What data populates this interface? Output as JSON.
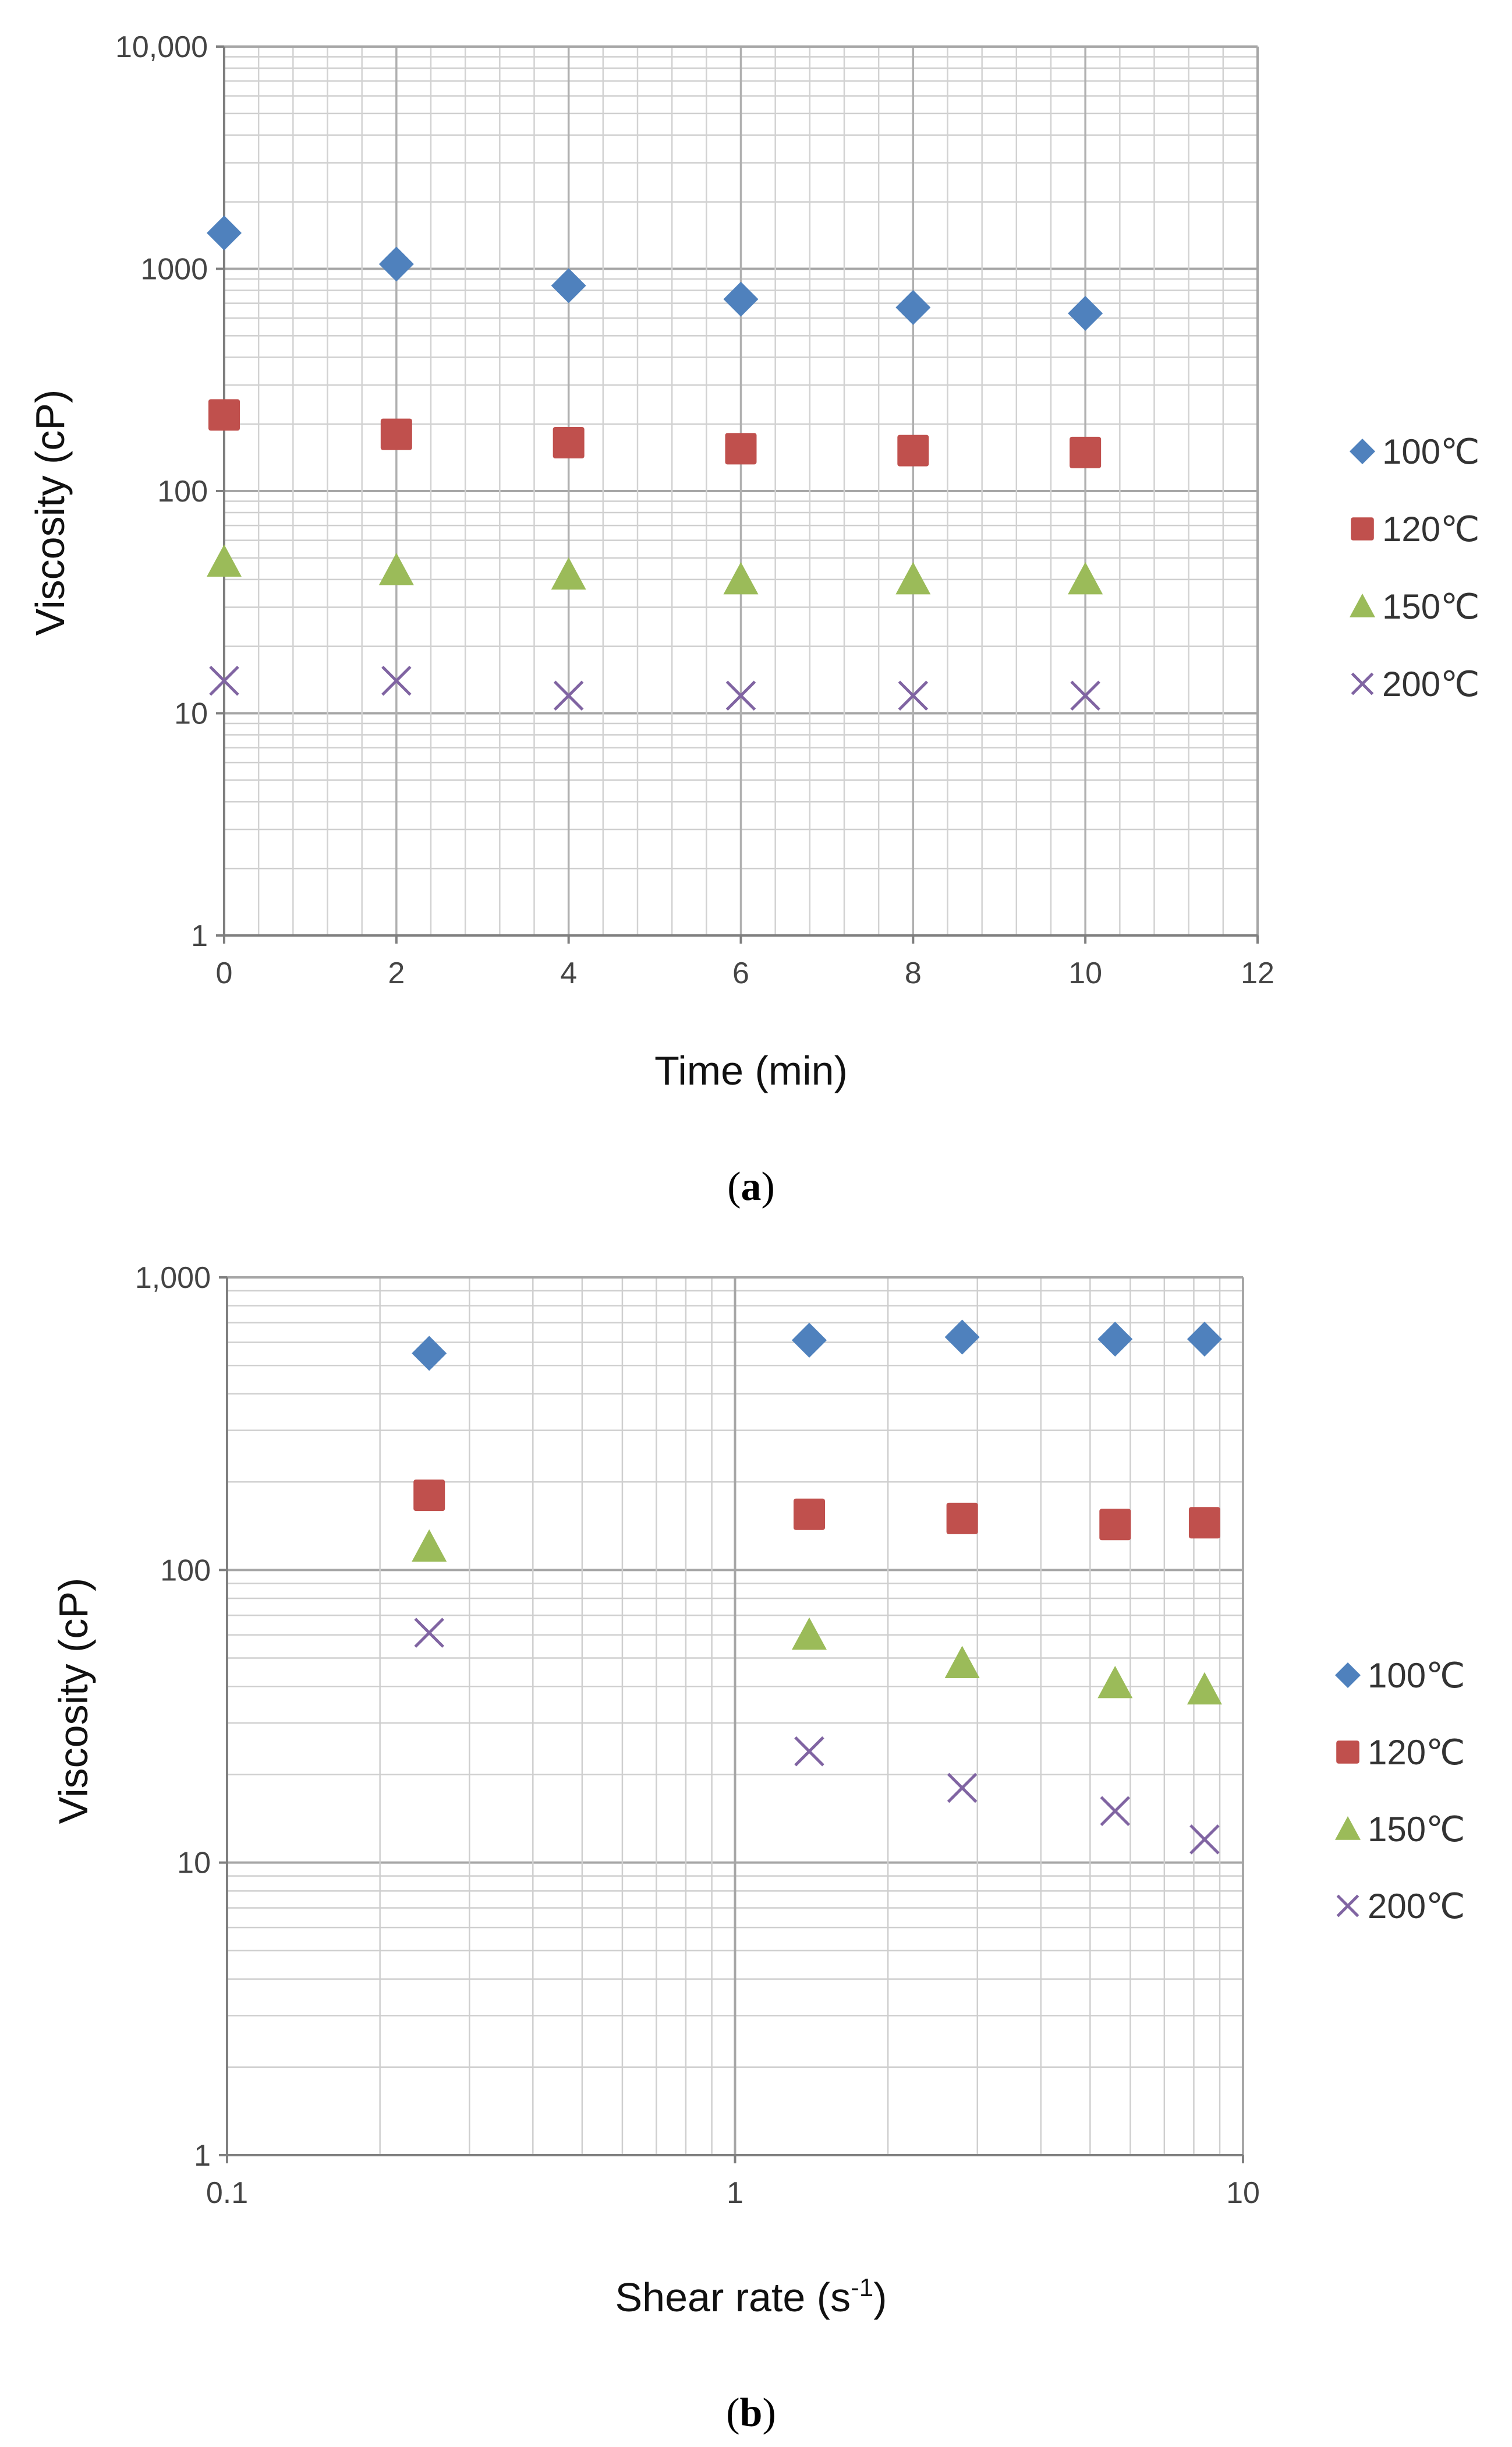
{
  "chart_data": [
    {
      "type": "scatter",
      "panel_label": "a",
      "title": "",
      "xlabel": "Time (min)",
      "ylabel": "Viscosity (cP)",
      "xscale": "linear",
      "yscale": "log",
      "xlim": [
        0,
        12
      ],
      "ylim": [
        1,
        10000
      ],
      "grid": true,
      "legend_position": "right",
      "x_ticks": [
        "0",
        "2",
        "4",
        "6",
        "8",
        "10",
        "12"
      ],
      "y_ticks": [
        "1",
        "10",
        "100",
        "1000",
        "10,000"
      ],
      "x": [
        0,
        2,
        4,
        6,
        8,
        10
      ],
      "series": [
        {
          "name": "100℃",
          "marker": "diamond",
          "color": "#4f81bd",
          "values": [
            1450,
            1050,
            840,
            730,
            670,
            630
          ]
        },
        {
          "name": "120℃",
          "marker": "square",
          "color": "#c0504d",
          "values": [
            220,
            180,
            165,
            155,
            152,
            149
          ]
        },
        {
          "name": "150℃",
          "marker": "triangle",
          "color": "#9bbb59",
          "values": [
            48,
            44,
            42,
            40,
            40,
            40
          ]
        },
        {
          "name": "200℃",
          "marker": "x",
          "color": "#8064a2",
          "values": [
            14,
            14,
            12,
            12,
            12,
            12
          ]
        }
      ]
    },
    {
      "type": "scatter",
      "panel_label": "b",
      "title": "",
      "xlabel": "Shear rate (s",
      "xlabel_sup": "-1",
      "xlabel_suffix": ")",
      "ylabel": "Viscosity (cP)",
      "xscale": "log",
      "yscale": "log",
      "xlim": [
        0.1,
        10
      ],
      "ylim": [
        1,
        1000
      ],
      "grid": true,
      "legend_position": "right",
      "x_ticks": [
        "0.1",
        "1",
        "10"
      ],
      "y_ticks": [
        "1",
        "10",
        "100",
        "1,000"
      ],
      "x": [
        0.25,
        1.4,
        2.8,
        5.6,
        8.4
      ],
      "series": [
        {
          "name": "100℃",
          "marker": "diamond",
          "color": "#4f81bd",
          "values": [
            550,
            610,
            625,
            615,
            615
          ]
        },
        {
          "name": "120℃",
          "marker": "square",
          "color": "#c0504d",
          "values": [
            180,
            155,
            150,
            143,
            145
          ]
        },
        {
          "name": "150℃",
          "marker": "triangle",
          "color": "#9bbb59",
          "values": [
            120,
            60,
            48,
            41,
            39
          ]
        },
        {
          "name": "200℃",
          "marker": "x",
          "color": "#8064a2",
          "values": [
            61,
            24,
            18,
            15,
            12
          ]
        }
      ]
    }
  ],
  "captions": {
    "a": {
      "open": "(",
      "letter": "a",
      "close": ")"
    },
    "b": {
      "open": "(",
      "letter": "b",
      "close": ")"
    }
  }
}
